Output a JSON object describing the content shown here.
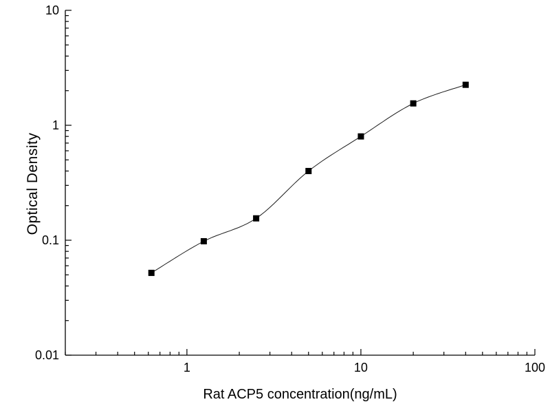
{
  "chart_data": {
    "type": "scatter",
    "title": "",
    "xlabel": "Rat ACP5 concentration(ng/mL)",
    "ylabel": "Optical Density",
    "x_scale": "log",
    "y_scale": "log",
    "xlim": [
      0.2,
      100
    ],
    "ylim": [
      0.01,
      10
    ],
    "x_major_ticks": [
      1,
      10,
      100
    ],
    "y_major_ticks": [
      0.01,
      0.1,
      1,
      10
    ],
    "grid": false,
    "legend": false,
    "marker": {
      "shape": "square",
      "color": "#000000",
      "size": 9
    },
    "line_color": "#1a1a1a",
    "line_width": 1,
    "points": [
      {
        "x": 0.625,
        "y": 0.052
      },
      {
        "x": 1.25,
        "y": 0.098
      },
      {
        "x": 2.5,
        "y": 0.155
      },
      {
        "x": 5,
        "y": 0.4
      },
      {
        "x": 10,
        "y": 0.8
      },
      {
        "x": 20,
        "y": 1.55
      },
      {
        "x": 40,
        "y": 2.25
      }
    ]
  }
}
